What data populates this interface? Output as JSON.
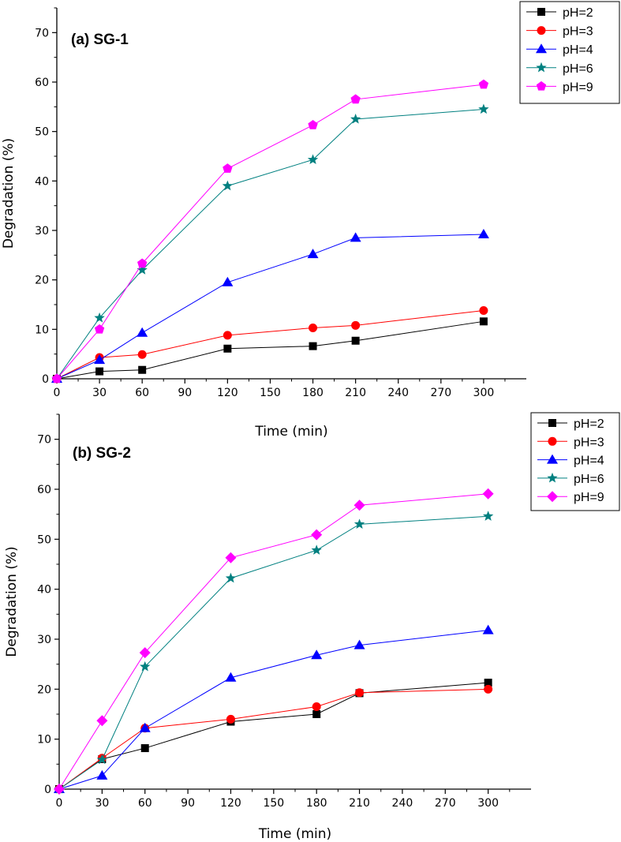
{
  "chart_data": [
    {
      "type": "line",
      "title": "(a) SG-1",
      "xlabel": "Time (min)",
      "ylabel": "Degradation (%)",
      "xlim": [
        0,
        330
      ],
      "ylim": [
        0,
        75
      ],
      "xticks": [
        0,
        30,
        60,
        90,
        120,
        150,
        180,
        210,
        240,
        270,
        300
      ],
      "yticks": [
        0,
        10,
        20,
        30,
        40,
        50,
        60,
        70
      ],
      "grid": false,
      "legend": "top-right",
      "x": [
        0,
        30,
        60,
        120,
        180,
        210,
        300
      ],
      "series": [
        {
          "name": "pH=2",
          "color": "#000000",
          "marker": "square",
          "values": [
            0,
            1.5,
            1.8,
            6.1,
            6.6,
            7.7,
            11.6
          ]
        },
        {
          "name": "pH=3",
          "color": "#ff0000",
          "marker": "circle",
          "values": [
            0,
            4.3,
            4.9,
            8.8,
            10.3,
            10.8,
            13.8
          ]
        },
        {
          "name": "pH=4",
          "color": "#0000ff",
          "marker": "triangle",
          "values": [
            0,
            3.8,
            9.3,
            19.5,
            25.2,
            28.5,
            29.2
          ]
        },
        {
          "name": "pH=6",
          "color": "#008080",
          "marker": "star",
          "values": [
            0,
            12.3,
            22.0,
            39.0,
            44.3,
            52.5,
            54.5
          ]
        },
        {
          "name": "pH=9",
          "color": "#ff00ff",
          "marker": "pentagon",
          "values": [
            0,
            10.0,
            23.3,
            42.5,
            51.3,
            56.5,
            59.5
          ]
        }
      ]
    },
    {
      "type": "line",
      "title": "(b) SG-2",
      "xlabel": "Time (min)",
      "ylabel": "Degradation (%)",
      "xlim": [
        0,
        330
      ],
      "ylim": [
        0,
        75
      ],
      "xticks": [
        0,
        30,
        60,
        90,
        120,
        150,
        180,
        210,
        240,
        270,
        300
      ],
      "yticks": [
        0,
        10,
        20,
        30,
        40,
        50,
        60,
        70
      ],
      "grid": false,
      "legend": "top-right",
      "x": [
        0,
        30,
        60,
        120,
        180,
        210,
        300
      ],
      "series": [
        {
          "name": "pH=2",
          "color": "#000000",
          "marker": "square",
          "values": [
            0,
            6.0,
            8.2,
            13.5,
            15.0,
            19.2,
            21.3
          ]
        },
        {
          "name": "pH=3",
          "color": "#ff0000",
          "marker": "circle",
          "values": [
            0,
            6.2,
            12.2,
            14.0,
            16.5,
            19.3,
            20.0
          ]
        },
        {
          "name": "pH=4",
          "color": "#0000ff",
          "marker": "triangle",
          "values": [
            0,
            2.7,
            12.2,
            22.3,
            26.8,
            28.8,
            31.8
          ]
        },
        {
          "name": "pH=6",
          "color": "#008080",
          "marker": "star",
          "values": [
            0,
            5.9,
            24.5,
            42.2,
            47.8,
            53.0,
            54.6
          ]
        },
        {
          "name": "pH=9",
          "color": "#ff00ff",
          "marker": "diamond",
          "values": [
            0,
            13.7,
            27.3,
            46.3,
            50.9,
            56.8,
            59.1
          ]
        }
      ]
    }
  ]
}
